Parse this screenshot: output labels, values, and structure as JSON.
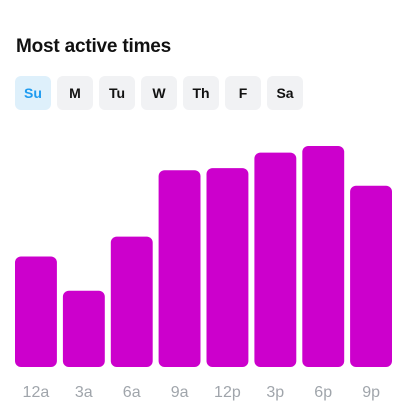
{
  "header": {
    "title": "Most active times"
  },
  "days": [
    {
      "label": "Su",
      "selected": true
    },
    {
      "label": "M",
      "selected": false
    },
    {
      "label": "Tu",
      "selected": false
    },
    {
      "label": "W",
      "selected": false
    },
    {
      "label": "Th",
      "selected": false
    },
    {
      "label": "F",
      "selected": false
    },
    {
      "label": "Sa",
      "selected": false
    }
  ],
  "colors": {
    "bar": "#cc00cc",
    "selected_tab_bg": "#def0fb",
    "selected_tab_text": "#1d9bf0",
    "tab_bg": "#f1f2f4",
    "tick_label": "#a0a5ab"
  },
  "chart_data": {
    "type": "bar",
    "categories": [
      "12a",
      "3a",
      "6a",
      "9a",
      "12p",
      "3p",
      "6p",
      "9p"
    ],
    "values": [
      0.5,
      0.345,
      0.59,
      0.89,
      0.9,
      0.97,
      1.0,
      0.82
    ],
    "ylim": [
      0,
      1
    ],
    "grid": false,
    "legend": "none"
  }
}
